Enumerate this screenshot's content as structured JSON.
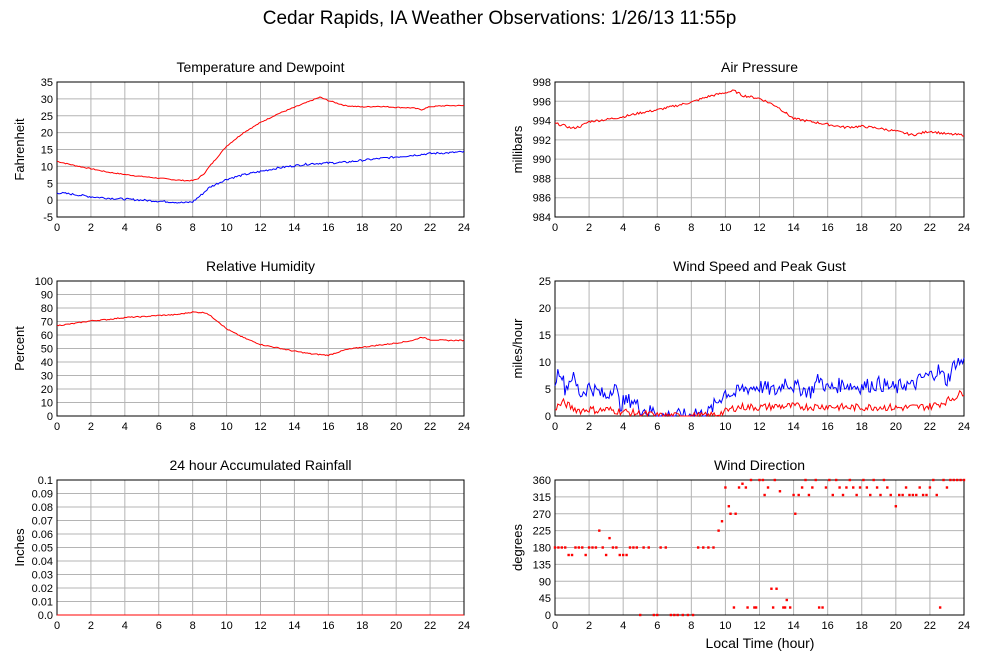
{
  "page": {
    "title": "Cedar Rapids, IA Weather Observations: 1/26/13 11:55p",
    "xlabel": "Local Time (hour)"
  },
  "colors": {
    "red": "#ff0000",
    "blue": "#0000ff",
    "grid": "#b4b4b4",
    "frame": "#000000"
  },
  "chart_data": [
    {
      "id": "temperature",
      "type": "line",
      "title": "Temperature and Dewpoint",
      "xlabel": "",
      "ylabel": "Fahrenheit",
      "xlim": [
        0,
        24
      ],
      "ylim": [
        -5,
        35
      ],
      "xticks": [
        0,
        2,
        4,
        6,
        8,
        10,
        12,
        14,
        16,
        18,
        20,
        22,
        24
      ],
      "yticks": [
        -5,
        0,
        5,
        10,
        15,
        20,
        25,
        30,
        35
      ],
      "grid": true,
      "series": [
        {
          "color": "#ff0000",
          "noise": 0.15,
          "x": [
            0,
            1,
            2,
            3,
            4,
            5,
            6,
            7,
            7.5,
            8,
            8.3,
            8.7,
            9,
            9.5,
            10,
            11,
            12,
            13,
            14,
            15,
            15.5,
            16,
            17,
            18,
            19,
            20,
            21,
            21.5,
            22,
            23,
            24
          ],
          "y": [
            11.5,
            10.3,
            9.3,
            8.3,
            7.6,
            7,
            6.5,
            6,
            5.8,
            5.8,
            6.3,
            8,
            10,
            13,
            16,
            20,
            23,
            25.5,
            27.5,
            29.5,
            30.5,
            29.5,
            28,
            27.6,
            27.8,
            27.5,
            27.3,
            26.8,
            27.7,
            28,
            28
          ]
        },
        {
          "color": "#0000ff",
          "noise": 0.3,
          "x": [
            0,
            1,
            2,
            3,
            4,
            5,
            6,
            7,
            7.5,
            8,
            8.5,
            9,
            10,
            11,
            12,
            13,
            14,
            15,
            16,
            17,
            18,
            19,
            20,
            21,
            22,
            23,
            24
          ],
          "y": [
            2.2,
            1.7,
            1,
            0.6,
            0.3,
            0,
            -0.3,
            -0.6,
            -0.8,
            -0.5,
            1.5,
            3.8,
            6.2,
            7.5,
            8.5,
            9.5,
            10.2,
            10.8,
            11,
            11.2,
            11.8,
            12.3,
            12.8,
            13.3,
            13.8,
            14,
            14.3
          ]
        }
      ]
    },
    {
      "id": "pressure",
      "type": "line",
      "title": "Air Pressure",
      "xlabel": "",
      "ylabel": "millibars",
      "xlim": [
        0,
        24
      ],
      "ylim": [
        984,
        998
      ],
      "xticks": [
        0,
        2,
        4,
        6,
        8,
        10,
        12,
        14,
        16,
        18,
        20,
        22,
        24
      ],
      "yticks": [
        984,
        986,
        988,
        990,
        992,
        994,
        996,
        998
      ],
      "grid": true,
      "series": [
        {
          "color": "#ff0000",
          "noise": 0.12,
          "x": [
            0,
            0.5,
            1,
            1.5,
            2,
            3,
            4,
            5,
            6,
            7,
            8,
            9,
            10,
            10.5,
            11,
            12,
            13,
            14,
            15,
            16,
            17,
            18,
            19,
            20,
            21,
            22,
            23,
            24
          ],
          "y": [
            993.7,
            993.5,
            993.2,
            993.4,
            993.9,
            994.1,
            994.4,
            994.8,
            995.1,
            995.5,
            995.9,
            996.5,
            996.9,
            997.1,
            996.6,
            996.3,
            995.5,
            994.2,
            993.9,
            993.6,
            993.3,
            993.4,
            993.2,
            992.9,
            992.5,
            992.9,
            992.6,
            992.5
          ]
        }
      ]
    },
    {
      "id": "humidity",
      "type": "line",
      "title": "Relative Humidity",
      "xlabel": "",
      "ylabel": "Percent",
      "xlim": [
        0,
        24
      ],
      "ylim": [
        0,
        100
      ],
      "xticks": [
        0,
        2,
        4,
        6,
        8,
        10,
        12,
        14,
        16,
        18,
        20,
        22,
        24
      ],
      "yticks": [
        0,
        10,
        20,
        30,
        40,
        50,
        60,
        70,
        80,
        90,
        100
      ],
      "grid": true,
      "series": [
        {
          "color": "#ff0000",
          "noise": 0.4,
          "x": [
            0,
            1,
            2,
            3,
            4,
            5,
            6,
            7,
            8,
            8.8,
            9.5,
            10,
            11,
            12,
            13,
            14,
            15,
            16,
            17,
            18,
            19,
            20,
            21,
            21.5,
            22,
            23,
            24
          ],
          "y": [
            67,
            68.5,
            70.5,
            71.5,
            73,
            73.5,
            74.5,
            75,
            77,
            76.5,
            70,
            64.5,
            58,
            53,
            50.5,
            48,
            46,
            45,
            49,
            51,
            52.5,
            54,
            56,
            58.5,
            56.5,
            56,
            56
          ]
        }
      ]
    },
    {
      "id": "wind-speed",
      "type": "line",
      "title": "Wind Speed and Peak Gust",
      "xlabel": "",
      "ylabel": "miles/hour",
      "xlim": [
        0,
        24
      ],
      "ylim": [
        0,
        25
      ],
      "xticks": [
        0,
        2,
        4,
        6,
        8,
        10,
        12,
        14,
        16,
        18,
        20,
        22,
        24
      ],
      "yticks": [
        0,
        5,
        10,
        15,
        20,
        25
      ],
      "grid": true,
      "series": [
        {
          "color": "#0000ff",
          "noise": 1.4,
          "x": [
            0,
            0.3,
            0.6,
            1,
            1.5,
            2,
            2.5,
            3,
            3.5,
            3.8,
            4,
            4.5,
            5,
            5.5,
            5.9,
            6,
            7,
            7.9,
            8.2,
            8.6,
            9,
            9.5,
            10,
            10.5,
            11,
            12,
            13,
            13.5,
            14,
            15,
            15.5,
            16,
            17,
            17.5,
            18,
            19,
            20,
            20.5,
            21,
            21.5,
            22,
            22.5,
            23,
            23.5,
            24
          ],
          "y": [
            6.5,
            9,
            5,
            7.5,
            4,
            5.5,
            4.5,
            3.5,
            6,
            2,
            2.5,
            3,
            1.5,
            0.8,
            1,
            0,
            0,
            0,
            1,
            0.2,
            0.6,
            2.5,
            4.5,
            4,
            5,
            5.5,
            4.5,
            6.5,
            5.5,
            4.5,
            7,
            5,
            6,
            5.5,
            5.5,
            6,
            5,
            6,
            5.5,
            7,
            7.5,
            8.5,
            6.5,
            10,
            10
          ]
        },
        {
          "color": "#ff0000",
          "noise": 0.7,
          "x": [
            0,
            0.5,
            1,
            1.5,
            2,
            2.5,
            3,
            3.5,
            4,
            4.5,
            5,
            5.5,
            6,
            6.5,
            7,
            8,
            9,
            9.5,
            10,
            10.5,
            11,
            12,
            13,
            14,
            15,
            16,
            17,
            18,
            19,
            20,
            21,
            22,
            22.5,
            23,
            23.5,
            24
          ],
          "y": [
            1.5,
            2.5,
            1.5,
            1,
            1.3,
            1,
            1.2,
            1,
            0.8,
            0.6,
            0.4,
            0.3,
            0,
            0,
            0,
            0,
            0,
            0.3,
            0.8,
            1.5,
            1.7,
            1.6,
            1.8,
            1.8,
            1.7,
            1.8,
            1.6,
            1.6,
            1.7,
            1.5,
            1.6,
            1.8,
            2.2,
            2.8,
            3.6,
            4.5
          ]
        }
      ]
    },
    {
      "id": "rainfall",
      "type": "line",
      "title": "24 hour Accumulated Rainfall",
      "xlabel": "",
      "ylabel": "Inches",
      "xlim": [
        0,
        24
      ],
      "ylim": [
        0,
        0.1
      ],
      "xticks": [
        0,
        2,
        4,
        6,
        8,
        10,
        12,
        14,
        16,
        18,
        20,
        22,
        24
      ],
      "yticks": [
        "0.0",
        "0.01",
        "0.02",
        "0.03",
        "0.04",
        "0.05",
        "0.06",
        "0.07",
        "0.08",
        "0.09",
        "0.1"
      ],
      "grid": true,
      "series": [
        {
          "color": "#ff0000",
          "noise": 0,
          "x": [
            0,
            24
          ],
          "y": [
            0,
            0
          ]
        }
      ]
    },
    {
      "id": "wind-direction",
      "type": "scatter",
      "title": "Wind Direction",
      "xlabel": "Local Time (hour)",
      "ylabel": "degrees",
      "xlim": [
        0,
        24
      ],
      "ylim": [
        0,
        360
      ],
      "xticks": [
        0,
        2,
        4,
        6,
        8,
        10,
        12,
        14,
        16,
        18,
        20,
        22,
        24
      ],
      "yticks": [
        0,
        45,
        90,
        135,
        180,
        225,
        270,
        315,
        360
      ],
      "grid": true,
      "series": [
        {
          "color": "#ff0000",
          "points": [
            [
              0.0,
              180
            ],
            [
              0.2,
              180
            ],
            [
              0.4,
              180
            ],
            [
              0.6,
              180
            ],
            [
              0.8,
              160
            ],
            [
              1.0,
              160
            ],
            [
              1.2,
              180
            ],
            [
              1.4,
              180
            ],
            [
              1.6,
              180
            ],
            [
              1.8,
              160
            ],
            [
              2.0,
              180
            ],
            [
              2.2,
              180
            ],
            [
              2.4,
              180
            ],
            [
              2.6,
              225
            ],
            [
              2.8,
              180
            ],
            [
              3.0,
              160
            ],
            [
              3.2,
              205
            ],
            [
              3.4,
              180
            ],
            [
              3.6,
              180
            ],
            [
              3.8,
              160
            ],
            [
              4.0,
              160
            ],
            [
              4.2,
              160
            ],
            [
              4.4,
              180
            ],
            [
              4.6,
              180
            ],
            [
              4.8,
              180
            ],
            [
              5.0,
              0
            ],
            [
              5.2,
              180
            ],
            [
              5.5,
              180
            ],
            [
              5.8,
              0
            ],
            [
              6.0,
              0
            ],
            [
              6.2,
              180
            ],
            [
              6.5,
              180
            ],
            [
              6.8,
              0
            ],
            [
              7.0,
              0
            ],
            [
              7.2,
              0
            ],
            [
              7.5,
              0
            ],
            [
              7.8,
              0
            ],
            [
              8.1,
              0
            ],
            [
              8.4,
              180
            ],
            [
              8.7,
              180
            ],
            [
              9.0,
              180
            ],
            [
              9.3,
              180
            ],
            [
              9.6,
              225
            ],
            [
              9.8,
              250
            ],
            [
              10.0,
              340
            ],
            [
              10.2,
              290
            ],
            [
              10.3,
              270
            ],
            [
              10.5,
              20
            ],
            [
              10.6,
              270
            ],
            [
              10.8,
              340
            ],
            [
              11.0,
              350
            ],
            [
              11.2,
              340
            ],
            [
              11.3,
              20
            ],
            [
              11.5,
              360
            ],
            [
              11.7,
              20
            ],
            [
              11.8,
              20
            ],
            [
              12.0,
              360
            ],
            [
              12.2,
              360
            ],
            [
              12.3,
              320
            ],
            [
              12.5,
              340
            ],
            [
              12.7,
              70
            ],
            [
              12.8,
              20
            ],
            [
              12.9,
              360
            ],
            [
              13.0,
              70
            ],
            [
              13.2,
              330
            ],
            [
              13.4,
              20
            ],
            [
              13.5,
              20
            ],
            [
              13.6,
              40
            ],
            [
              13.8,
              20
            ],
            [
              14.0,
              320
            ],
            [
              14.1,
              270
            ],
            [
              14.3,
              320
            ],
            [
              14.5,
              340
            ],
            [
              14.7,
              360
            ],
            [
              14.9,
              320
            ],
            [
              15.1,
              340
            ],
            [
              15.3,
              360
            ],
            [
              15.5,
              20
            ],
            [
              15.7,
              20
            ],
            [
              15.9,
              340
            ],
            [
              16.1,
              360
            ],
            [
              16.3,
              320
            ],
            [
              16.5,
              360
            ],
            [
              16.7,
              340
            ],
            [
              16.9,
              320
            ],
            [
              17.1,
              340
            ],
            [
              17.3,
              360
            ],
            [
              17.5,
              340
            ],
            [
              17.7,
              320
            ],
            [
              17.9,
              340
            ],
            [
              18.1,
              360
            ],
            [
              18.3,
              340
            ],
            [
              18.5,
              320
            ],
            [
              18.7,
              360
            ],
            [
              18.9,
              340
            ],
            [
              19.1,
              320
            ],
            [
              19.3,
              360
            ],
            [
              19.5,
              340
            ],
            [
              19.7,
              320
            ],
            [
              20.0,
              290
            ],
            [
              20.2,
              320
            ],
            [
              20.4,
              320
            ],
            [
              20.6,
              340
            ],
            [
              20.8,
              320
            ],
            [
              21.0,
              320
            ],
            [
              21.2,
              320
            ],
            [
              21.4,
              340
            ],
            [
              21.6,
              320
            ],
            [
              21.8,
              320
            ],
            [
              22.0,
              340
            ],
            [
              22.2,
              360
            ],
            [
              22.4,
              320
            ],
            [
              22.6,
              20
            ],
            [
              22.8,
              360
            ],
            [
              23.0,
              340
            ],
            [
              23.2,
              360
            ],
            [
              23.4,
              360
            ],
            [
              23.6,
              360
            ],
            [
              23.8,
              360
            ],
            [
              24.0,
              360
            ]
          ]
        }
      ]
    }
  ]
}
